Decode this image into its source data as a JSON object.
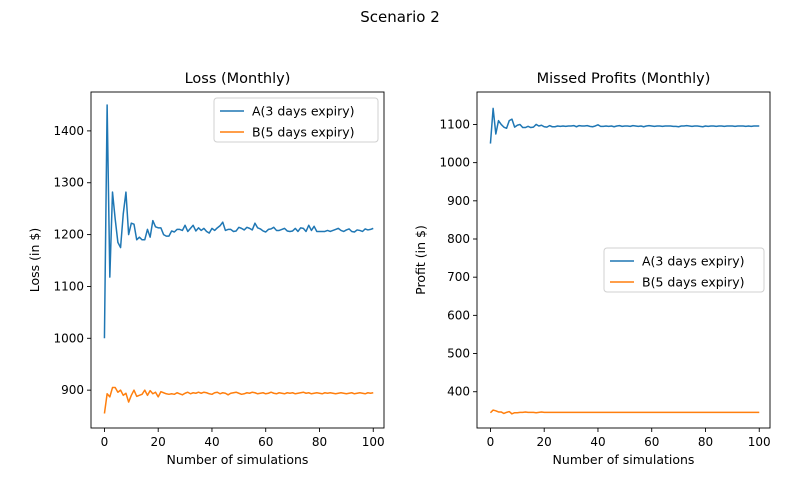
{
  "suptitle": "Scenario 2",
  "colors": {
    "A": "#1f77b4",
    "B": "#ff7f0e"
  },
  "chart_data": [
    {
      "type": "line",
      "title": "Loss (Monthly)",
      "xlabel": "Number of simulations",
      "ylabel": "Loss (in $)",
      "xlim": [
        -5,
        104
      ],
      "ylim": [
        827,
        1475
      ],
      "xticks": [
        0,
        20,
        40,
        60,
        80,
        100
      ],
      "yticks": [
        900,
        1000,
        1100,
        1200,
        1300,
        1400
      ],
      "legend": "top-right",
      "series": [
        {
          "name": "A(3 days expiry)",
          "color_key": "A",
          "values": [
            1000,
            1450,
            1118,
            1282,
            1230,
            1185,
            1175,
            1240,
            1282,
            1200,
            1222,
            1220,
            1190,
            1195,
            1190,
            1190,
            1210,
            1195,
            1227,
            1215,
            1213,
            1213,
            1200,
            1197,
            1197,
            1207,
            1205,
            1210,
            1210,
            1208,
            1218,
            1206,
            1212,
            1218,
            1207,
            1213,
            1208,
            1212,
            1206,
            1203,
            1212,
            1208,
            1213,
            1217,
            1224,
            1208,
            1210,
            1210,
            1206,
            1207,
            1214,
            1212,
            1209,
            1214,
            1212,
            1209,
            1222,
            1213,
            1211,
            1207,
            1205,
            1210,
            1211,
            1214,
            1208,
            1208,
            1210,
            1212,
            1207,
            1206,
            1207,
            1212,
            1206,
            1213,
            1212,
            1206,
            1218,
            1208,
            1216,
            1206,
            1206,
            1206,
            1206,
            1208,
            1206,
            1208,
            1210,
            1212,
            1208,
            1206,
            1209,
            1211,
            1206,
            1205,
            1209,
            1208,
            1206,
            1211,
            1209,
            1210,
            1212
          ]
        },
        {
          "name": "B(5 days expiry)",
          "color_key": "B",
          "values": [
            855,
            893,
            887,
            905,
            905,
            896,
            900,
            890,
            894,
            877,
            890,
            900,
            888,
            890,
            892,
            900,
            890,
            899,
            893,
            896,
            887,
            897,
            895,
            893,
            892,
            893,
            892,
            895,
            893,
            891,
            894,
            896,
            893,
            895,
            894,
            896,
            894,
            896,
            895,
            893,
            892,
            895,
            896,
            893,
            895,
            894,
            891,
            894,
            895,
            896,
            894,
            892,
            893,
            895,
            894,
            896,
            895,
            893,
            894,
            895,
            893,
            894,
            896,
            894,
            893,
            895,
            894,
            893,
            895,
            894,
            895,
            893,
            894,
            895,
            896,
            894,
            895,
            893,
            894,
            895,
            894,
            893,
            895,
            894,
            895,
            894,
            893,
            894,
            895,
            894,
            893,
            894,
            895,
            893,
            894,
            895,
            894,
            893,
            895,
            894,
            895
          ]
        }
      ]
    },
    {
      "type": "line",
      "title": "Missed Profits (Monthly)",
      "xlabel": "Number of simulations",
      "ylabel": "Profit (in $)",
      "xlim": [
        -5,
        104
      ],
      "ylim": [
        305,
        1185
      ],
      "xticks": [
        0,
        20,
        40,
        60,
        80,
        100
      ],
      "yticks": [
        400,
        500,
        600,
        700,
        800,
        900,
        1000,
        1100
      ],
      "legend": "center-right",
      "series": [
        {
          "name": "A(3 days expiry)",
          "color_key": "A",
          "values": [
            1050,
            1142,
            1075,
            1110,
            1100,
            1093,
            1090,
            1110,
            1114,
            1093,
            1098,
            1100,
            1092,
            1092,
            1095,
            1092,
            1093,
            1100,
            1096,
            1098,
            1094,
            1093,
            1097,
            1094,
            1094,
            1096,
            1095,
            1096,
            1095,
            1096,
            1096,
            1097,
            1094,
            1097,
            1096,
            1096,
            1097,
            1095,
            1094,
            1096,
            1099,
            1095,
            1095,
            1096,
            1095,
            1096,
            1094,
            1096,
            1097,
            1095,
            1096,
            1096,
            1095,
            1097,
            1096,
            1095,
            1096,
            1094,
            1096,
            1097,
            1096,
            1095,
            1096,
            1096,
            1095,
            1096,
            1096,
            1096,
            1095,
            1095,
            1094,
            1096,
            1096,
            1097,
            1096,
            1095,
            1096,
            1096,
            1095,
            1094,
            1096,
            1095,
            1096,
            1096,
            1095,
            1096,
            1096,
            1095,
            1096,
            1096,
            1096,
            1095,
            1096,
            1096,
            1096,
            1095,
            1096,
            1095,
            1096,
            1096,
            1096
          ]
        },
        {
          "name": "B(5 days expiry)",
          "color_key": "B",
          "values": [
            345,
            352,
            350,
            347,
            347,
            343,
            346,
            348,
            342,
            345,
            345,
            346,
            346,
            347,
            346,
            346,
            346,
            345,
            346,
            347,
            346,
            346,
            346,
            346,
            346,
            346,
            346,
            346,
            346,
            346,
            346,
            346,
            346,
            346,
            346,
            346,
            346,
            346,
            346,
            346,
            346,
            346,
            346,
            346,
            346,
            346,
            346,
            346,
            346,
            346,
            346,
            346,
            346,
            346,
            346,
            346,
            346,
            346,
            346,
            346,
            346,
            346,
            346,
            346,
            346,
            346,
            346,
            346,
            346,
            346,
            346,
            346,
            346,
            346,
            346,
            346,
            346,
            346,
            346,
            346,
            346,
            346,
            346,
            346,
            346,
            346,
            346,
            346,
            346,
            346,
            346,
            346,
            346,
            346,
            346,
            346,
            346,
            346,
            346,
            346,
            346
          ]
        }
      ]
    }
  ]
}
